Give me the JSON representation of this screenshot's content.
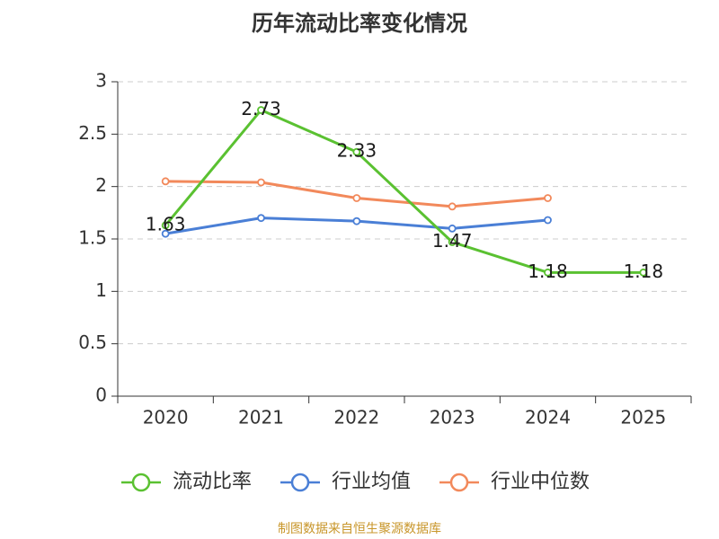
{
  "title": "历年流动比率变化情况",
  "footer": "制图数据来自恒生聚源数据库",
  "chart_data": {
    "type": "line",
    "title": "历年流动比率变化情况",
    "categories": [
      "2020",
      "2021",
      "2022",
      "2023",
      "2024",
      "2025"
    ],
    "ylim": [
      0,
      3
    ],
    "yticks": [
      "0",
      "0.5",
      "1",
      "1.5",
      "2",
      "2.5",
      "3"
    ],
    "grid": true,
    "legend_position": "bottom",
    "series": [
      {
        "name": "流动比率",
        "color": "#5ac131",
        "values": [
          1.63,
          2.73,
          2.33,
          1.47,
          1.18,
          1.18
        ],
        "labels": [
          "1.63",
          "2.73",
          "2.33",
          "1.47",
          "1.18",
          "1.18"
        ]
      },
      {
        "name": "行业均值",
        "color": "#4a7fd6",
        "values": [
          1.55,
          1.7,
          1.67,
          1.6,
          1.68,
          null
        ]
      },
      {
        "name": "行业中位数",
        "color": "#f2895b",
        "values": [
          2.05,
          2.04,
          1.89,
          1.81,
          1.89,
          null
        ]
      }
    ]
  }
}
